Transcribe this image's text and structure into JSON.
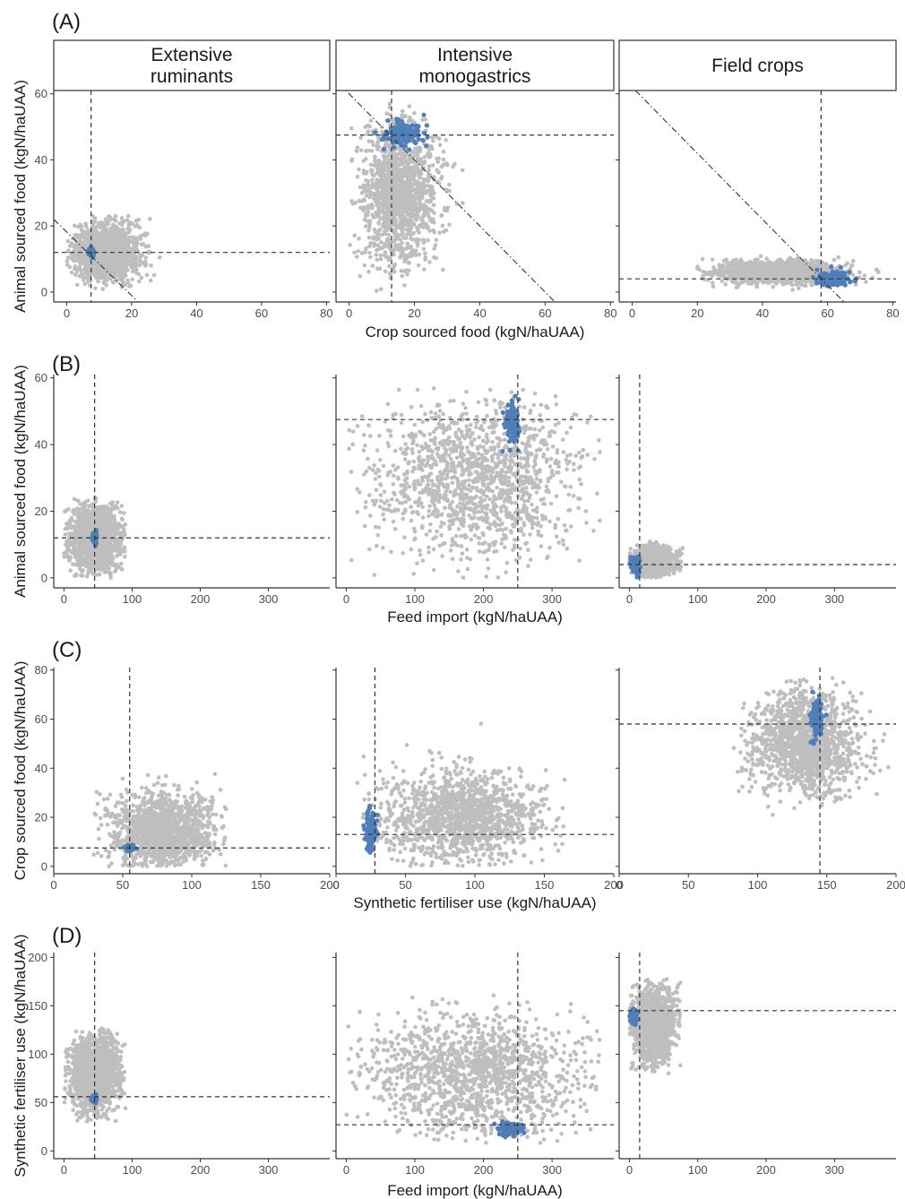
{
  "colors": {
    "background_points": "#bebebe",
    "highlight_points": "#4f7fb8",
    "reference_lines": "#333333",
    "strip_fill": "#ffffff"
  },
  "facets": [
    "Extensive\nruminants",
    "Intensive\nmonogastrics",
    "Field crops"
  ],
  "rows": [
    {
      "tag": "(A)"
    },
    {
      "tag": "(B)"
    },
    {
      "tag": "(C)"
    },
    {
      "tag": "(D)"
    }
  ],
  "chart_data": [
    {
      "type": "scatter",
      "row": "(A)",
      "xlabel": "Crop sourced food (kgN/haUAA)",
      "ylabel": "Animal sourced food (kgN/haUAA)",
      "xlim": [
        -4,
        81
      ],
      "ylim": [
        -3,
        61
      ],
      "xticks": [
        0,
        20,
        40,
        60,
        80
      ],
      "yticks": [
        0,
        20,
        40,
        60
      ],
      "grid": false,
      "panels": [
        {
          "facet": "Extensive ruminants",
          "ref_x": 7.5,
          "ref_y": 12,
          "diagonal": [
            [
              -4,
              22
            ],
            [
              22,
              -3
            ]
          ],
          "cloud": {
            "center": [
              12,
              12
            ],
            "spread": [
              12,
              10
            ],
            "x_range": [
              0,
              38
            ],
            "y_range": [
              0,
              23
            ]
          },
          "highlight": {
            "center": [
              7.5,
              12
            ],
            "spread": [
              0.7,
              1.2
            ]
          }
        },
        {
          "facet": "Intensive monogastrics",
          "ref_x": 13,
          "ref_y": 47.5,
          "diagonal": [
            [
              -3,
              63
            ],
            [
              63,
              -3
            ]
          ],
          "cloud": {
            "center": [
              15,
              30
            ],
            "spread": [
              14,
              26
            ],
            "x_range": [
              0,
              65
            ],
            "y_range": [
              0,
              57
            ]
          },
          "highlight": {
            "center": [
              17,
              48
            ],
            "spread": [
              6,
              4
            ]
          }
        },
        {
          "facet": "Field crops",
          "ref_x": 58,
          "ref_y": 4,
          "diagonal": [
            [
              1,
              61
            ],
            [
              65,
              -3
            ]
          ],
          "cloud": {
            "center": [
              45,
              6
            ],
            "spread": [
              23,
              4
            ],
            "x_range": [
              20,
              78
            ],
            "y_range": [
              0,
              11
            ]
          },
          "highlight": {
            "center": [
              62,
              4
            ],
            "spread": [
              5,
              2.5
            ]
          }
        }
      ]
    },
    {
      "type": "scatter",
      "row": "(B)",
      "xlabel": "Feed import (kgN/haUAA)",
      "ylabel": "Animal sourced food (kgN/haUAA)",
      "xlim": [
        -15,
        390
      ],
      "ylim": [
        -3,
        61
      ],
      "xticks": [
        0,
        100,
        200,
        300
      ],
      "yticks": [
        0,
        20,
        40,
        60
      ],
      "grid": false,
      "panels": [
        {
          "facet": "Extensive ruminants",
          "ref_x": 45,
          "ref_y": 12,
          "cloud": {
            "center": [
              45,
              12
            ],
            "spread": [
              45,
              12
            ],
            "x_range": [
              0,
              90
            ],
            "y_range": [
              0,
              24
            ]
          },
          "highlight": {
            "center": [
              45,
              12
            ],
            "spread": [
              3,
              1.5
            ]
          }
        },
        {
          "facet": "Intensive monogastrics",
          "ref_x": 250,
          "ref_y": 47.5,
          "cloud": {
            "center": [
              185,
              30
            ],
            "spread": [
              185,
              28
            ],
            "x_range": [
              0,
              370
            ],
            "y_range": [
              0,
              57
            ]
          },
          "highlight": {
            "center": [
              243,
              46
            ],
            "spread": [
              10,
              6
            ]
          }
        },
        {
          "facet": "Field crops",
          "ref_x": 15,
          "ref_y": 4,
          "cloud": {
            "center": [
              35,
              5
            ],
            "spread": [
              35,
              5
            ],
            "x_range": [
              0,
              78
            ],
            "y_range": [
              0,
              11
            ]
          },
          "highlight": {
            "center": [
              8,
              4
            ],
            "spread": [
              6,
              3
            ]
          }
        }
      ]
    },
    {
      "type": "scatter",
      "row": "(C)",
      "xlabel": "Synthetic fertiliser use (kgN/haUAA)",
      "ylabel": "Crop sourced food (kgN/haUAA)",
      "xlim": [
        0,
        200
      ],
      "ylim": [
        -3,
        81
      ],
      "xticks": [
        0,
        50,
        100,
        150,
        200
      ],
      "yticks": [
        0,
        20,
        40,
        60,
        80
      ],
      "grid": false,
      "panels": [
        {
          "facet": "Extensive ruminants",
          "ref_x": 55,
          "ref_y": 7.5,
          "cloud": {
            "center": [
              80,
              14
            ],
            "spread": [
              45,
              19
            ],
            "x_range": [
              28,
              125
            ],
            "y_range": [
              0,
              38
            ]
          },
          "highlight": {
            "center": [
              55,
              7.5
            ],
            "spread": [
              3,
              1
            ]
          }
        },
        {
          "facet": "Intensive monogastrics",
          "ref_x": 28,
          "ref_y": 13,
          "cloud": {
            "center": [
              90,
              20
            ],
            "spread": [
              70,
              22
            ],
            "x_range": [
              15,
              165
            ],
            "y_range": [
              0,
              65
            ]
          },
          "highlight": {
            "center": [
              25,
              15
            ],
            "spread": [
              4,
              7
            ]
          }
        },
        {
          "facet": "Field crops",
          "ref_x": 145,
          "ref_y": 58,
          "cloud": {
            "center": [
              135,
              50
            ],
            "spread": [
              45,
              25
            ],
            "x_range": [
              80,
              195
            ],
            "y_range": [
              20,
              77
            ]
          },
          "highlight": {
            "center": [
              143,
              60
            ],
            "spread": [
              4,
              8
            ]
          }
        }
      ]
    },
    {
      "type": "scatter",
      "row": "(D)",
      "xlabel": "Feed import (kgN/haUAA)",
      "ylabel": "Synthetic fertiliser use (kgN/haUAA)",
      "xlim": [
        -15,
        390
      ],
      "ylim": [
        -8,
        205
      ],
      "xticks": [
        0,
        100,
        200,
        300
      ],
      "yticks": [
        0,
        50,
        100,
        150,
        200
      ],
      "grid": false,
      "panels": [
        {
          "facet": "Extensive ruminants",
          "ref_x": 45,
          "ref_y": 56,
          "cloud": {
            "center": [
              45,
              80
            ],
            "spread": [
              45,
              47
            ],
            "x_range": [
              0,
              92
            ],
            "y_range": [
              28,
              128
            ]
          },
          "highlight": {
            "center": [
              44,
              54
            ],
            "spread": [
              3,
              3
            ]
          }
        },
        {
          "facet": "Intensive monogastrics",
          "ref_x": 250,
          "ref_y": 27,
          "cloud": {
            "center": [
              185,
              80
            ],
            "spread": [
              185,
              75
            ],
            "x_range": [
              0,
              370
            ],
            "y_range": [
              8,
              162
            ]
          },
          "highlight": {
            "center": [
              240,
              23
            ],
            "spread": [
              15,
              6
            ]
          }
        },
        {
          "facet": "Field crops",
          "ref_x": 15,
          "ref_y": 145,
          "cloud": {
            "center": [
              35,
              130
            ],
            "spread": [
              38,
              45
            ],
            "x_range": [
              0,
              75
            ],
            "y_range": [
              80,
              178
            ]
          },
          "highlight": {
            "center": [
              7,
              139
            ],
            "spread": [
              5,
              8
            ]
          }
        }
      ]
    }
  ]
}
